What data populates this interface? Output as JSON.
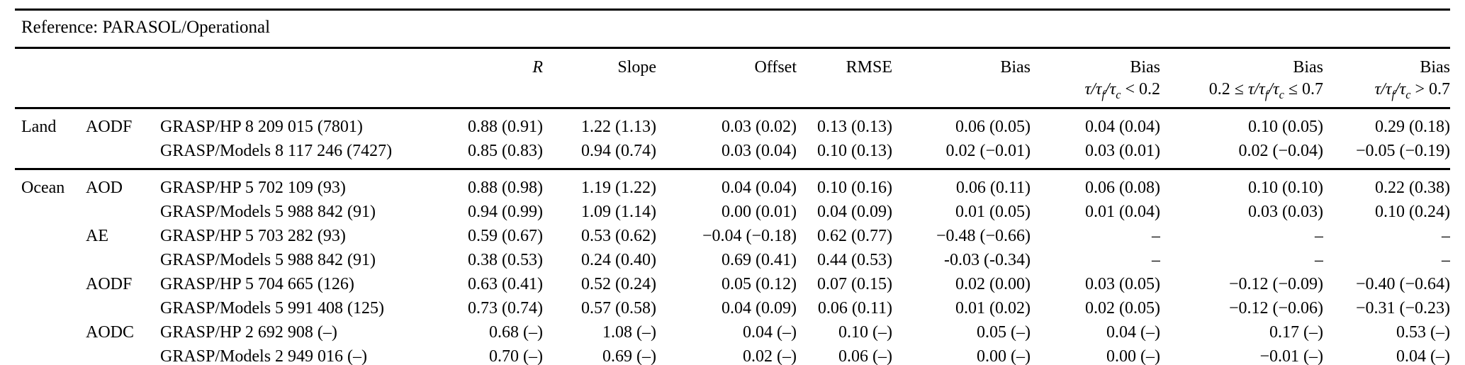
{
  "table": {
    "title": "Reference: PARASOL/Operational",
    "header": {
      "r": "R",
      "slope": "Slope",
      "offset": "Offset",
      "rmse": "RMSE",
      "bias": "Bias",
      "bias_low": "Bias",
      "bias_mid": "Bias",
      "bias_high": "Bias",
      "bias_low_cond_text": "τ/τf/τc < 0.2",
      "bias_mid_cond_text": "0.2 ≤ τ/τf/τc ≤ 0.7",
      "bias_high_cond_text": "τ/τf/τc > 0.7",
      "bias_low_cond_html": "<i>τ/τ<sub>f</sub>/τ<sub>c</sub></i> < 0.2",
      "bias_mid_cond_html": "0.2 ≤ <i>τ/τ<sub>f</sub>/τ<sub>c</sub></i> ≤ 0.7",
      "bias_high_cond_html": "<i>τ/τ<sub>f</sub>/τ<sub>c</sub></i> > 0.7"
    },
    "rows": [
      {
        "group": "Land",
        "param": "AODF",
        "dataset": "GRASP/HP 8 209 015 (7801)",
        "r": "0.88 (0.91)",
        "slope": "1.22 (1.13)",
        "offset": "0.03 (0.02)",
        "rmse": "0.13 (0.13)",
        "bias": "0.06 (0.05)",
        "bias_low": "0.04 (0.04)",
        "bias_mid": "0.10 (0.05)",
        "bias_high": "0.29 (0.18)"
      },
      {
        "group": "",
        "param": "",
        "dataset": "GRASP/Models 8 117 246 (7427)",
        "r": "0.85 (0.83)",
        "slope": "0.94 (0.74)",
        "offset": "0.03 (0.04)",
        "rmse": "0.10 (0.13)",
        "bias": "0.02 (−0.01)",
        "bias_low": "0.03 (0.01)",
        "bias_mid": "0.02 (−0.04)",
        "bias_high": "−0.05 (−0.19)"
      },
      {
        "group": "Ocean",
        "param": "AOD",
        "dataset": "GRASP/HP 5 702 109 (93)",
        "r": "0.88 (0.98)",
        "slope": "1.19 (1.22)",
        "offset": "0.04 (0.04)",
        "rmse": "0.10 (0.16)",
        "bias": "0.06 (0.11)",
        "bias_low": "0.06 (0.08)",
        "bias_mid": "0.10 (0.10)",
        "bias_high": "0.22 (0.38)"
      },
      {
        "group": "",
        "param": "",
        "dataset": "GRASP/Models 5 988 842 (91)",
        "r": "0.94 (0.99)",
        "slope": "1.09 (1.14)",
        "offset": "0.00 (0.01)",
        "rmse": "0.04 (0.09)",
        "bias": "0.01 (0.05)",
        "bias_low": "0.01 (0.04)",
        "bias_mid": "0.03 (0.03)",
        "bias_high": "0.10 (0.24)"
      },
      {
        "group": "",
        "param": "AE",
        "dataset": "GRASP/HP 5 703 282 (93)",
        "r": "0.59 (0.67)",
        "slope": "0.53 (0.62)",
        "offset": "−0.04 (−0.18)",
        "rmse": "0.62 (0.77)",
        "bias": "−0.48 (−0.66)",
        "bias_low": "–",
        "bias_mid": "–",
        "bias_high": "–"
      },
      {
        "group": "",
        "param": "",
        "dataset": "GRASP/Models 5 988 842 (91)",
        "r": "0.38 (0.53)",
        "slope": "0.24 (0.40)",
        "offset": "0.69 (0.41)",
        "rmse": "0.44 (0.53)",
        "bias": "-0.03 (-0.34)",
        "bias_low": "–",
        "bias_mid": "–",
        "bias_high": "–"
      },
      {
        "group": "",
        "param": "AODF",
        "dataset": "GRASP/HP 5 704 665 (126)",
        "r": "0.63 (0.41)",
        "slope": "0.52 (0.24)",
        "offset": "0.05 (0.12)",
        "rmse": "0.07 (0.15)",
        "bias": "0.02 (0.00)",
        "bias_low": "0.03 (0.05)",
        "bias_mid": "−0.12 (−0.09)",
        "bias_high": "−0.40 (−0.64)"
      },
      {
        "group": "",
        "param": "",
        "dataset": "GRASP/Models 5 991 408 (125)",
        "r": "0.73 (0.74)",
        "slope": "0.57 (0.58)",
        "offset": "0.04 (0.09)",
        "rmse": "0.06 (0.11)",
        "bias": "0.01 (0.02)",
        "bias_low": "0.02 (0.05)",
        "bias_mid": "−0.12 (−0.06)",
        "bias_high": "−0.31 (−0.23)"
      },
      {
        "group": "",
        "param": "AODC",
        "dataset": "GRASP/HP 2 692 908 (–)",
        "r": "0.68 (–)",
        "slope": "1.08 (–)",
        "offset": "0.04 (–)",
        "rmse": "0.10 (–)",
        "bias": "0.05 (–)",
        "bias_low": "0.04 (–)",
        "bias_mid": "0.17 (–)",
        "bias_high": "0.53 (–)"
      },
      {
        "group": "",
        "param": "",
        "dataset": "GRASP/Models 2 949 016 (–)",
        "r": "0.70 (–)",
        "slope": "0.69 (–)",
        "offset": "0.02 (–)",
        "rmse": "0.06 (–)",
        "bias": "0.00 (–)",
        "bias_low": "0.00 (–)",
        "bias_mid": "−0.01 (–)",
        "bias_high": "0.04 (–)"
      }
    ]
  }
}
